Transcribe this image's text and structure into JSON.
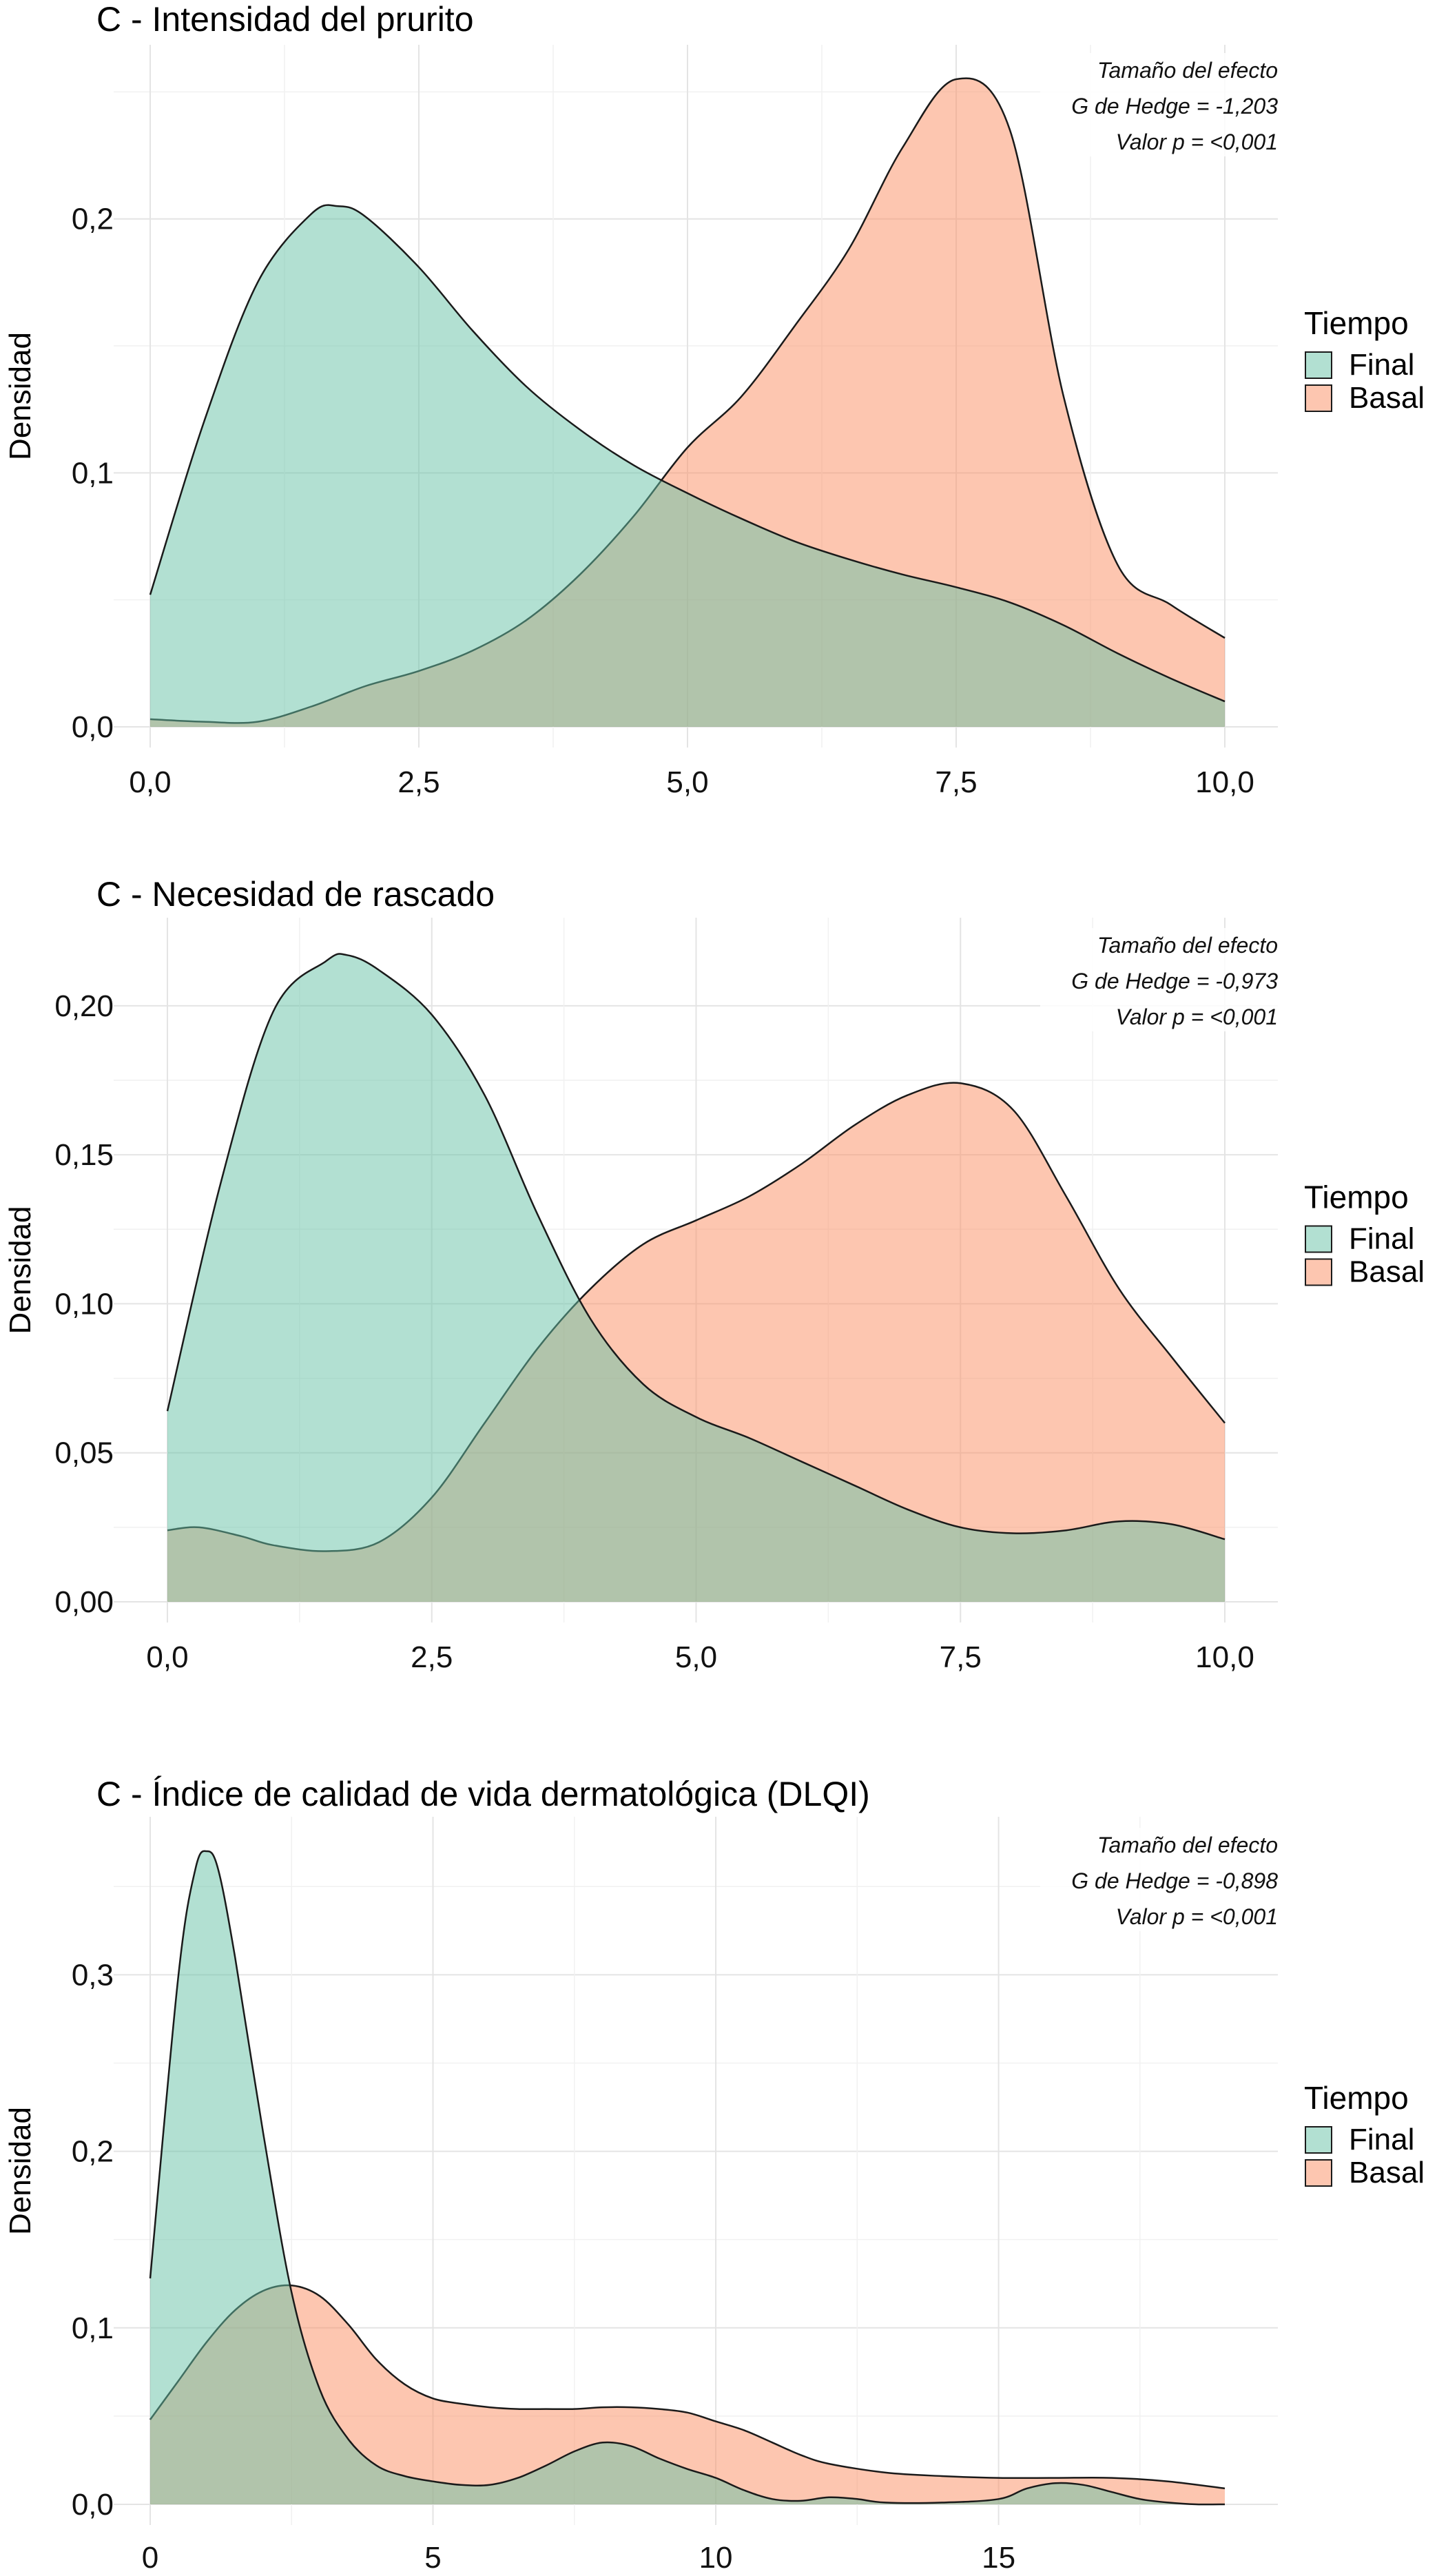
{
  "colors": {
    "final_fill": "#66c2a5",
    "basal_fill": "#fc8d62",
    "outline": "#1a1a1a",
    "grid": "#e4e4e4"
  },
  "legend": {
    "title": "Tiempo",
    "entries": [
      "Final",
      "Basal"
    ]
  },
  "chart_data": [
    {
      "type": "area",
      "title": "C - Intensidad del prurito",
      "xlabel": "",
      "ylabel": "Densidad",
      "xlim": [
        0,
        10
      ],
      "ylim": [
        0,
        0.255
      ],
      "x_ticks": [
        0,
        2.5,
        5,
        7.5,
        10
      ],
      "x_tick_labels": [
        "0,0",
        "2,5",
        "5,0",
        "7,5",
        "10,0"
      ],
      "y_ticks": [
        0,
        0.1,
        0.2
      ],
      "y_tick_labels": [
        "0,0",
        "0,1",
        "0,2"
      ],
      "grid": true,
      "legend_position": "right",
      "annotation": [
        "Tamaño del efecto",
        "G de Hedge = -1,203",
        "Valor p = <0,001"
      ],
      "series": [
        {
          "name": "Final",
          "x": [
            0,
            0.5,
            1.0,
            1.5,
            1.75,
            2.0,
            2.5,
            3.0,
            3.5,
            4.0,
            4.5,
            5.0,
            5.5,
            6.0,
            6.5,
            7.0,
            7.5,
            8.0,
            8.5,
            9.0,
            9.5,
            10.0
          ],
          "y": [
            0.052,
            0.12,
            0.175,
            0.202,
            0.205,
            0.201,
            0.181,
            0.156,
            0.134,
            0.117,
            0.103,
            0.092,
            0.082,
            0.073,
            0.066,
            0.06,
            0.055,
            0.049,
            0.04,
            0.029,
            0.019,
            0.01
          ]
        },
        {
          "name": "Basal",
          "x": [
            0,
            0.5,
            1.0,
            1.5,
            2.0,
            2.5,
            3.0,
            3.5,
            4.0,
            4.5,
            5.0,
            5.5,
            6.0,
            6.5,
            7.0,
            7.5,
            8.0,
            8.5,
            9.0,
            9.5,
            10.0
          ],
          "y": [
            0.003,
            0.002,
            0.002,
            0.008,
            0.016,
            0.022,
            0.03,
            0.042,
            0.06,
            0.083,
            0.11,
            0.13,
            0.158,
            0.188,
            0.228,
            0.255,
            0.235,
            0.13,
            0.064,
            0.048,
            0.035
          ]
        }
      ]
    },
    {
      "type": "area",
      "title": "C - Necesidad de rascado",
      "xlabel": "",
      "ylabel": "Densidad",
      "xlim": [
        0,
        10
      ],
      "ylim": [
        0,
        0.218
      ],
      "x_ticks": [
        0,
        2.5,
        5,
        7.5,
        10
      ],
      "x_tick_labels": [
        "0,0",
        "2,5",
        "5,0",
        "7,5",
        "10,0"
      ],
      "y_ticks": [
        0,
        0.05,
        0.1,
        0.15,
        0.2
      ],
      "y_tick_labels": [
        "0,00",
        "0,05",
        "0,10",
        "0,15",
        "0,20"
      ],
      "grid": true,
      "legend_position": "right",
      "annotation": [
        "Tamaño del efecto",
        "G de Hedge = -0,973",
        "Valor p = <0,001"
      ],
      "series": [
        {
          "name": "Final",
          "x": [
            0,
            0.5,
            1.0,
            1.5,
            1.7,
            2.0,
            2.5,
            3.0,
            3.5,
            4.0,
            4.5,
            5.0,
            5.5,
            6.0,
            6.5,
            7.0,
            7.5,
            8.0,
            8.5,
            9.0,
            9.5,
            10.0
          ],
          "y": [
            0.064,
            0.14,
            0.198,
            0.215,
            0.217,
            0.212,
            0.197,
            0.17,
            0.13,
            0.095,
            0.073,
            0.062,
            0.055,
            0.047,
            0.039,
            0.031,
            0.025,
            0.023,
            0.024,
            0.027,
            0.026,
            0.021
          ]
        },
        {
          "name": "Basal",
          "x": [
            0,
            0.3,
            0.7,
            1.0,
            1.5,
            2.0,
            2.5,
            3.0,
            3.5,
            4.0,
            4.5,
            5.0,
            5.5,
            6.0,
            6.5,
            7.0,
            7.5,
            8.0,
            8.5,
            9.0,
            9.5,
            10.0
          ],
          "y": [
            0.024,
            0.025,
            0.022,
            0.019,
            0.017,
            0.02,
            0.035,
            0.06,
            0.085,
            0.105,
            0.12,
            0.128,
            0.136,
            0.147,
            0.16,
            0.17,
            0.174,
            0.165,
            0.136,
            0.105,
            0.082,
            0.06
          ]
        }
      ]
    },
    {
      "type": "area",
      "title": "C - Índice de calidad de vida dermatológica (DLQI)",
      "xlabel": "",
      "ylabel": "Densidad",
      "xlim": [
        0,
        19
      ],
      "ylim": [
        0,
        0.37
      ],
      "x_ticks": [
        0,
        5,
        10,
        15
      ],
      "x_tick_labels": [
        "0",
        "5",
        "10",
        "15"
      ],
      "y_ticks": [
        0,
        0.1,
        0.2,
        0.3
      ],
      "y_tick_labels": [
        "0,0",
        "0,1",
        "0,2",
        "0,3"
      ],
      "grid": true,
      "legend_position": "right",
      "annotation": [
        "Tamaño del efecto",
        "G de Hedge = -0,898",
        "Valor p = <0,001"
      ],
      "series": [
        {
          "name": "Final",
          "x": [
            0,
            0.5,
            0.8,
            1.0,
            1.2,
            1.5,
            2.0,
            2.5,
            3.0,
            3.5,
            4.0,
            4.5,
            5.0,
            5.5,
            6.0,
            6.5,
            7.0,
            7.5,
            8.0,
            8.5,
            9.0,
            9.5,
            10.0,
            10.5,
            11.0,
            11.5,
            12.0,
            12.5,
            13.0,
            14.0,
            15.0,
            15.5,
            16.0,
            16.5,
            17.0,
            17.5,
            18.0,
            18.5,
            19.0
          ],
          "y": [
            0.128,
            0.3,
            0.36,
            0.37,
            0.36,
            0.31,
            0.21,
            0.12,
            0.065,
            0.037,
            0.022,
            0.016,
            0.013,
            0.011,
            0.011,
            0.015,
            0.022,
            0.03,
            0.035,
            0.033,
            0.026,
            0.02,
            0.015,
            0.008,
            0.003,
            0.002,
            0.004,
            0.003,
            0.001,
            0.001,
            0.003,
            0.009,
            0.012,
            0.011,
            0.007,
            0.003,
            0.001,
            0.0,
            0.0
          ]
        },
        {
          "name": "Basal",
          "x": [
            0,
            0.5,
            1.0,
            1.5,
            2.0,
            2.5,
            3.0,
            3.5,
            4.0,
            4.5,
            5.0,
            5.5,
            6.0,
            6.5,
            7.0,
            7.5,
            8.0,
            8.5,
            9.0,
            9.5,
            10.0,
            10.5,
            11.0,
            11.5,
            12.0,
            13.0,
            14.0,
            15.0,
            16.0,
            17.0,
            18.0,
            19.0
          ],
          "y": [
            0.048,
            0.07,
            0.092,
            0.11,
            0.121,
            0.124,
            0.118,
            0.102,
            0.082,
            0.068,
            0.06,
            0.057,
            0.055,
            0.054,
            0.054,
            0.054,
            0.055,
            0.055,
            0.054,
            0.052,
            0.047,
            0.042,
            0.035,
            0.028,
            0.023,
            0.018,
            0.016,
            0.015,
            0.015,
            0.015,
            0.013,
            0.009
          ]
        }
      ]
    }
  ]
}
